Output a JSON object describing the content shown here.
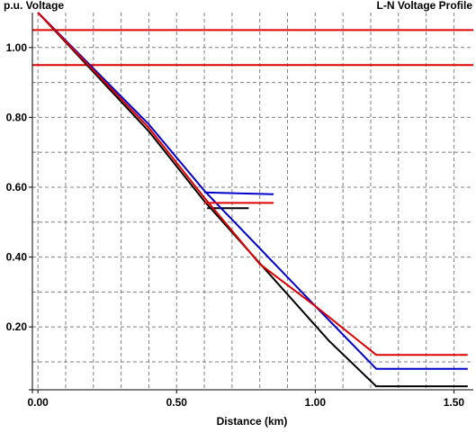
{
  "chart_data": {
    "type": "line",
    "title": "L-N Voltage Profile",
    "ylabel": "p.u. Voltage",
    "xlabel": "Distance (km)",
    "xlim": [
      -0.02,
      1.57
    ],
    "ylim": [
      0.02,
      1.1
    ],
    "x_ticks": [
      {
        "value": 0.0,
        "label": "0.00"
      },
      {
        "value": 0.5,
        "label": "0.50"
      },
      {
        "value": 1.0,
        "label": "1.00"
      },
      {
        "value": 1.5,
        "label": "1.50"
      }
    ],
    "x_minor_grid": [
      0.1,
      0.2,
      0.3,
      0.4,
      0.6,
      0.7,
      0.8,
      0.9,
      1.1,
      1.2,
      1.3,
      1.4
    ],
    "y_ticks": [
      {
        "value": 0.2,
        "label": "0.20"
      },
      {
        "value": 0.4,
        "label": "0.40"
      },
      {
        "value": 0.6,
        "label": "0.60"
      },
      {
        "value": 0.8,
        "label": "0.80"
      },
      {
        "value": 1.0,
        "label": "1.00"
      }
    ],
    "y_minor_grid": [
      0.1,
      0.3,
      0.5,
      0.7,
      0.9
    ],
    "grid": true,
    "reference_lines": [
      {
        "y": 1.05,
        "color": "#dd0000"
      },
      {
        "y": 0.95,
        "color": "#dd0000"
      }
    ],
    "series": [
      {
        "color": "#000000",
        "points": [
          [
            0.0,
            1.1
          ],
          [
            0.4,
            0.76
          ],
          [
            0.6,
            0.56
          ],
          [
            1.05,
            0.16
          ],
          [
            1.22,
            0.03
          ],
          [
            1.55,
            0.03
          ]
        ],
        "branch": [
          [
            0.61,
            0.54
          ],
          [
            0.76,
            0.54
          ]
        ]
      },
      {
        "color": "#0000cc",
        "points": [
          [
            0.0,
            1.1
          ],
          [
            0.4,
            0.78
          ],
          [
            0.6,
            0.59
          ],
          [
            1.0,
            0.26
          ],
          [
            1.22,
            0.08
          ],
          [
            1.55,
            0.08
          ]
        ],
        "branch": [
          [
            0.6,
            0.585
          ],
          [
            0.85,
            0.58
          ]
        ]
      },
      {
        "color": "#dd0000",
        "points": [
          [
            0.0,
            1.1
          ],
          [
            0.4,
            0.77
          ],
          [
            0.6,
            0.57
          ],
          [
            0.8,
            0.38
          ],
          [
            1.0,
            0.26
          ],
          [
            1.22,
            0.12
          ],
          [
            1.55,
            0.12
          ]
        ],
        "branch": [
          [
            0.6,
            0.555
          ],
          [
            0.85,
            0.555
          ]
        ]
      }
    ]
  }
}
